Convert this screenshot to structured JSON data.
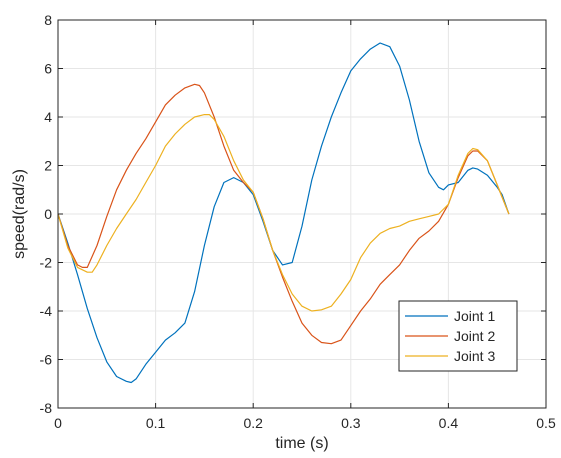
{
  "chart_data": {
    "type": "line",
    "xlabel": "time (s)",
    "ylabel": "speed(rad/s)",
    "xlim": [
      0,
      0.5
    ],
    "ylim": [
      -8,
      8
    ],
    "xticks": [
      0,
      0.1,
      0.2,
      0.3,
      0.4,
      0.5
    ],
    "xtick_labels": [
      "0",
      "0.1",
      "0.2",
      "0.3",
      "0.4",
      "0.5"
    ],
    "yticks": [
      -8,
      -6,
      -4,
      -2,
      0,
      2,
      4,
      6,
      8
    ],
    "ytick_labels": [
      "-8",
      "-6",
      "-4",
      "-2",
      "0",
      "2",
      "4",
      "6",
      "8"
    ],
    "grid": true,
    "legend_position": "bottom-right",
    "series": [
      {
        "name": "Joint 1",
        "color": "#0072BD",
        "x": [
          0,
          0.01,
          0.02,
          0.03,
          0.04,
          0.05,
          0.06,
          0.07,
          0.075,
          0.08,
          0.09,
          0.1,
          0.11,
          0.12,
          0.13,
          0.14,
          0.15,
          0.16,
          0.17,
          0.18,
          0.19,
          0.2,
          0.21,
          0.22,
          0.23,
          0.24,
          0.25,
          0.26,
          0.27,
          0.28,
          0.29,
          0.3,
          0.31,
          0.32,
          0.33,
          0.34,
          0.35,
          0.36,
          0.37,
          0.38,
          0.39,
          0.395,
          0.4,
          0.41,
          0.42,
          0.425,
          0.43,
          0.44,
          0.45,
          0.455,
          0.462
        ],
        "y": [
          0,
          -1.2,
          -2.5,
          -3.9,
          -5.1,
          -6.1,
          -6.7,
          -6.9,
          -6.95,
          -6.8,
          -6.2,
          -5.7,
          -5.2,
          -4.9,
          -4.5,
          -3.2,
          -1.3,
          0.3,
          1.3,
          1.5,
          1.3,
          0.8,
          -0.3,
          -1.5,
          -2.1,
          -2.0,
          -0.5,
          1.4,
          2.8,
          4.0,
          5.0,
          5.9,
          6.4,
          6.8,
          7.05,
          6.9,
          6.1,
          4.7,
          3.0,
          1.7,
          1.1,
          1.0,
          1.2,
          1.3,
          1.8,
          1.9,
          1.85,
          1.6,
          1.1,
          0.8,
          0
        ]
      },
      {
        "name": "Joint 2",
        "color": "#D95319",
        "x": [
          0,
          0.01,
          0.02,
          0.025,
          0.03,
          0.04,
          0.05,
          0.06,
          0.07,
          0.08,
          0.09,
          0.1,
          0.11,
          0.12,
          0.13,
          0.14,
          0.145,
          0.15,
          0.16,
          0.17,
          0.18,
          0.19,
          0.2,
          0.21,
          0.22,
          0.23,
          0.24,
          0.25,
          0.26,
          0.27,
          0.28,
          0.29,
          0.3,
          0.31,
          0.32,
          0.33,
          0.34,
          0.35,
          0.36,
          0.37,
          0.38,
          0.39,
          0.4,
          0.41,
          0.42,
          0.425,
          0.43,
          0.44,
          0.45,
          0.462
        ],
        "y": [
          0,
          -1.3,
          -2.1,
          -2.2,
          -2.2,
          -1.3,
          -0.1,
          1.0,
          1.8,
          2.5,
          3.1,
          3.8,
          4.5,
          4.9,
          5.2,
          5.35,
          5.3,
          5.0,
          4.0,
          2.8,
          1.8,
          1.3,
          0.9,
          -0.2,
          -1.5,
          -2.6,
          -3.6,
          -4.5,
          -5.0,
          -5.3,
          -5.35,
          -5.2,
          -4.6,
          -4.0,
          -3.5,
          -2.9,
          -2.5,
          -2.1,
          -1.5,
          -1.0,
          -0.7,
          -0.3,
          0.4,
          1.5,
          2.4,
          2.6,
          2.6,
          2.2,
          1.2,
          0
        ]
      },
      {
        "name": "Joint 3",
        "color": "#EDB120",
        "x": [
          0,
          0.01,
          0.02,
          0.03,
          0.035,
          0.04,
          0.05,
          0.06,
          0.07,
          0.08,
          0.09,
          0.1,
          0.11,
          0.12,
          0.13,
          0.14,
          0.15,
          0.155,
          0.16,
          0.17,
          0.18,
          0.19,
          0.2,
          0.21,
          0.22,
          0.23,
          0.24,
          0.25,
          0.26,
          0.27,
          0.28,
          0.29,
          0.3,
          0.31,
          0.32,
          0.33,
          0.34,
          0.35,
          0.36,
          0.37,
          0.38,
          0.39,
          0.4,
          0.41,
          0.42,
          0.425,
          0.43,
          0.44,
          0.45,
          0.462
        ],
        "y": [
          0,
          -1.4,
          -2.2,
          -2.4,
          -2.4,
          -2.1,
          -1.3,
          -0.6,
          0.0,
          0.6,
          1.3,
          2.0,
          2.8,
          3.3,
          3.7,
          4.0,
          4.1,
          4.1,
          3.9,
          3.2,
          2.2,
          1.4,
          0.9,
          -0.2,
          -1.5,
          -2.5,
          -3.3,
          -3.8,
          -4.0,
          -3.95,
          -3.8,
          -3.3,
          -2.7,
          -1.8,
          -1.2,
          -0.8,
          -0.6,
          -0.5,
          -0.3,
          -0.2,
          -0.1,
          0.0,
          0.4,
          1.6,
          2.5,
          2.7,
          2.65,
          2.2,
          1.2,
          0
        ]
      }
    ]
  }
}
